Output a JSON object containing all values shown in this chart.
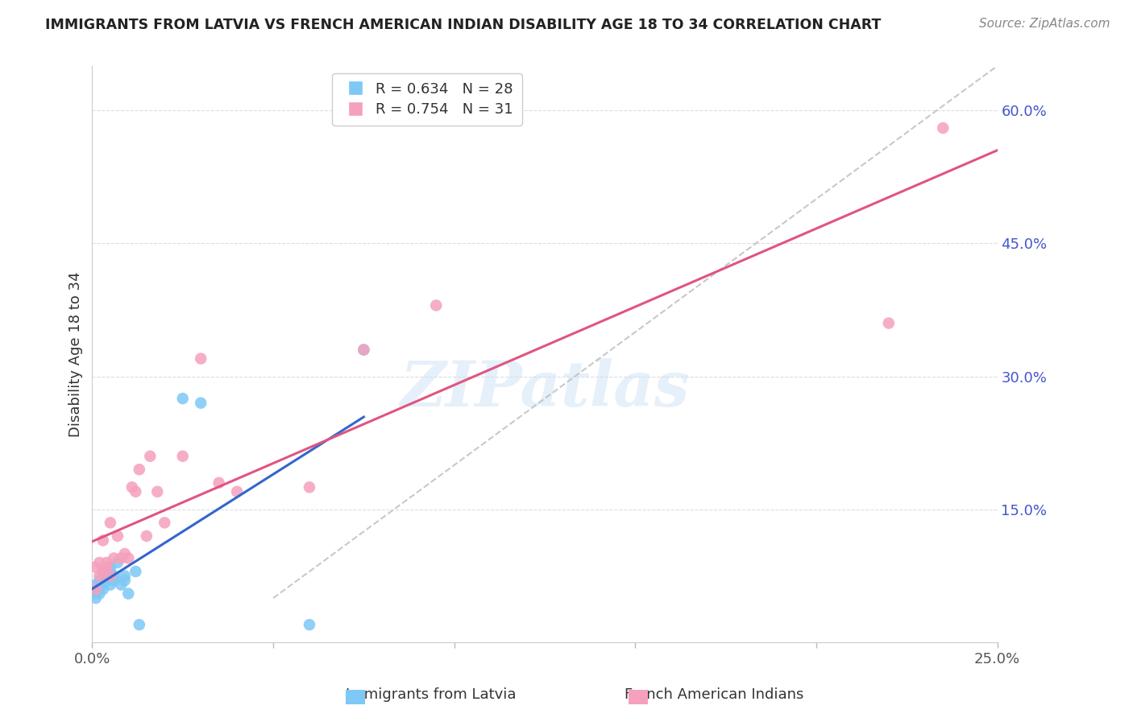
{
  "title": "IMMIGRANTS FROM LATVIA VS FRENCH AMERICAN INDIAN DISABILITY AGE 18 TO 34 CORRELATION CHART",
  "source": "Source: ZipAtlas.com",
  "ylabel": "Disability Age 18 to 34",
  "xlim": [
    0.0,
    0.25
  ],
  "ylim": [
    0.0,
    0.65
  ],
  "yticks_right": [
    0.15,
    0.3,
    0.45,
    0.6
  ],
  "ytick_labels_right": [
    "15.0%",
    "30.0%",
    "45.0%",
    "60.0%"
  ],
  "xtick_vals": [
    0.0,
    0.25
  ],
  "xtick_labels": [
    "0.0%",
    "25.0%"
  ],
  "legend_R1": "R = 0.634",
  "legend_N1": "N = 28",
  "legend_R2": "R = 0.754",
  "legend_N2": "N = 31",
  "legend_label1": "Immigrants from Latvia",
  "legend_label2": "French American Indians",
  "blue_color": "#7ec8f5",
  "pink_color": "#f5a0bc",
  "blue_line_color": "#3366cc",
  "pink_line_color": "#e05580",
  "diag_color": "#bbbbbb",
  "watermark": "ZIPatlas",
  "blue_scatter_x": [
    0.0005,
    0.001,
    0.001,
    0.0015,
    0.002,
    0.002,
    0.0025,
    0.003,
    0.003,
    0.003,
    0.004,
    0.004,
    0.005,
    0.005,
    0.005,
    0.006,
    0.006,
    0.007,
    0.008,
    0.009,
    0.009,
    0.01,
    0.012,
    0.013,
    0.025,
    0.03,
    0.06,
    0.075
  ],
  "blue_scatter_y": [
    0.055,
    0.05,
    0.065,
    0.06,
    0.055,
    0.07,
    0.07,
    0.065,
    0.06,
    0.08,
    0.07,
    0.075,
    0.065,
    0.08,
    0.085,
    0.075,
    0.07,
    0.09,
    0.065,
    0.075,
    0.07,
    0.055,
    0.08,
    0.02,
    0.275,
    0.27,
    0.02,
    0.33
  ],
  "pink_scatter_x": [
    0.001,
    0.001,
    0.002,
    0.002,
    0.003,
    0.003,
    0.004,
    0.004,
    0.005,
    0.005,
    0.006,
    0.007,
    0.008,
    0.009,
    0.01,
    0.011,
    0.012,
    0.013,
    0.015,
    0.016,
    0.018,
    0.02,
    0.025,
    0.03,
    0.035,
    0.04,
    0.06,
    0.075,
    0.095,
    0.22,
    0.235
  ],
  "pink_scatter_y": [
    0.06,
    0.085,
    0.075,
    0.09,
    0.08,
    0.115,
    0.085,
    0.09,
    0.075,
    0.135,
    0.095,
    0.12,
    0.095,
    0.1,
    0.095,
    0.175,
    0.17,
    0.195,
    0.12,
    0.21,
    0.17,
    0.135,
    0.21,
    0.32,
    0.18,
    0.17,
    0.175,
    0.33,
    0.38,
    0.36,
    0.58
  ],
  "blue_line_x": [
    0.0,
    0.075
  ],
  "blue_line_y_intercept": 0.055,
  "blue_line_slope": 3.0,
  "pink_line_x": [
    0.0,
    0.25
  ],
  "pink_line_y_intercept": 0.065,
  "pink_line_slope": 2.05,
  "diag_line_x": [
    0.05,
    0.25
  ],
  "diag_line_y": [
    0.05,
    0.65
  ]
}
